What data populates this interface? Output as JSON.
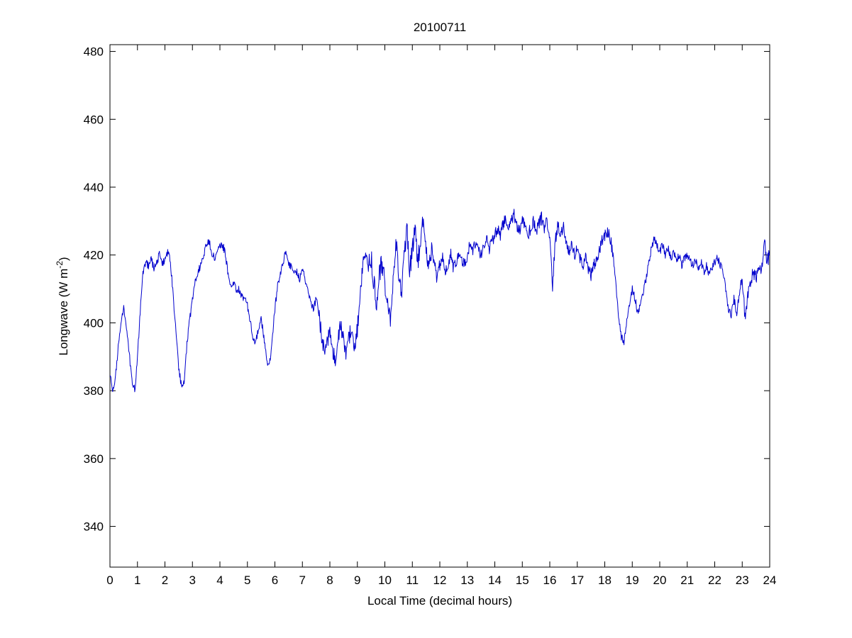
{
  "page": {
    "background": "#ffffff"
  },
  "chart_data": {
    "type": "line",
    "title": "20100711",
    "xlabel": "Local Time (decimal hours)",
    "ylabel": "Longwave (W m-2)",
    "ylabel_parts": {
      "main": "Longwave (W m",
      "sup": "-2",
      "close": ")"
    },
    "xlim": [
      0,
      24
    ],
    "ylim": [
      328,
      482
    ],
    "xticks": [
      0,
      1,
      2,
      3,
      4,
      5,
      6,
      7,
      8,
      9,
      10,
      11,
      12,
      13,
      14,
      15,
      16,
      17,
      18,
      19,
      20,
      21,
      22,
      23,
      24
    ],
    "yticks": [
      340,
      360,
      380,
      400,
      420,
      440,
      460,
      480
    ],
    "grid": false,
    "legend": "none",
    "line_color": "#0000cd",
    "axis_color": "#000000",
    "series_anchors": {
      "name": "longwave-radiation",
      "x_start": 0.0,
      "x_step": 0.1,
      "y": [
        385,
        379,
        384,
        393,
        400,
        404,
        398,
        391,
        383,
        380,
        390,
        403,
        415,
        418,
        417,
        419,
        416,
        418,
        420,
        417,
        419,
        421,
        418,
        408,
        398,
        387,
        381,
        383,
        394,
        401,
        407,
        412,
        415,
        417,
        420,
        423,
        424,
        421,
        419,
        421,
        423,
        423,
        420,
        414,
        411,
        412,
        409,
        410,
        408,
        407,
        405,
        400,
        396,
        394,
        398,
        401,
        396,
        389,
        387,
        395,
        404,
        411,
        414,
        418,
        421,
        418,
        416,
        414,
        415,
        413,
        416,
        413,
        410,
        406,
        404,
        407,
        403,
        396,
        391,
        394,
        398,
        392,
        389,
        396,
        400,
        394,
        391,
        396,
        399,
        393,
        398,
        408,
        418,
        420,
        417,
        419,
        412,
        405,
        414,
        418,
        412,
        405,
        401,
        412,
        425,
        415,
        408,
        420,
        428,
        415,
        422,
        428,
        418,
        425,
        430,
        420,
        415,
        422,
        418,
        414,
        416,
        419,
        415,
        417,
        420,
        416,
        418,
        421,
        419,
        417,
        420,
        423,
        421,
        424,
        422,
        420,
        423,
        425,
        422,
        424,
        426,
        428,
        425,
        429,
        431,
        428,
        430,
        432,
        429,
        427,
        430,
        428,
        425,
        428,
        430,
        427,
        429,
        431,
        428,
        430,
        425,
        411,
        424,
        429,
        426,
        428,
        424,
        421,
        423,
        420,
        422,
        419,
        417,
        420,
        416,
        414,
        417,
        419,
        421,
        424,
        426,
        427,
        425,
        420,
        412,
        402,
        396,
        394,
        400,
        406,
        410,
        407,
        403,
        405,
        409,
        413,
        418,
        422,
        425,
        423,
        421,
        423,
        420,
        422,
        419,
        421,
        418,
        420,
        417,
        419,
        420,
        418,
        417,
        419,
        416,
        418,
        415,
        417,
        414,
        416,
        418,
        419,
        417,
        415,
        410,
        404,
        402,
        407,
        403,
        409,
        413,
        402,
        408,
        412,
        415,
        413,
        416,
        414,
        425,
        418,
        420
      ]
    },
    "noise": {
      "base_amp": 1.2,
      "regions": [
        {
          "from": 7.6,
          "to": 9.2,
          "amp": 2.5
        },
        {
          "from": 9.4,
          "to": 12.0,
          "amp": 3.2
        },
        {
          "from": 12.0,
          "to": 18.3,
          "amp": 1.8
        },
        {
          "from": 22.9,
          "to": 24.0,
          "amp": 2.0
        }
      ],
      "samples_per_hour": 60,
      "seed": 20100711
    }
  }
}
